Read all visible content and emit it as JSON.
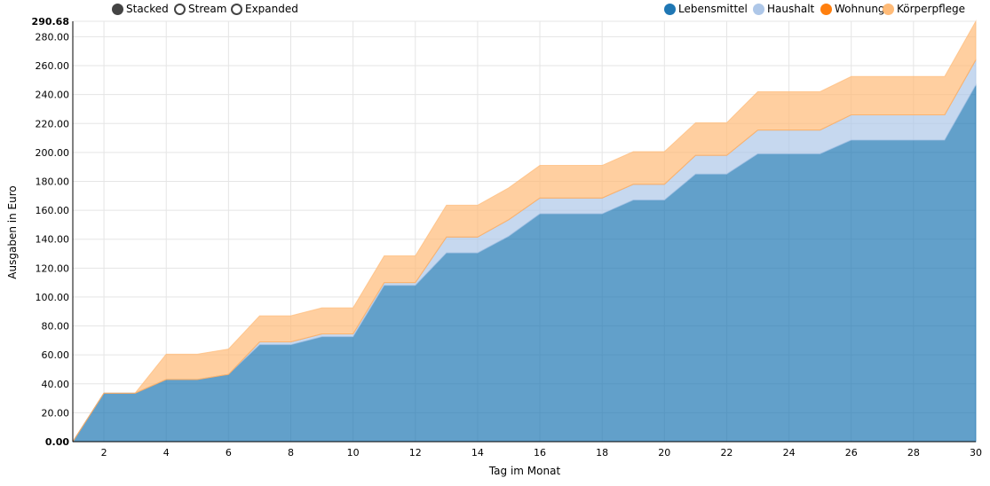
{
  "controls": {
    "stacked_label": "Stacked",
    "stream_label": "Stream",
    "expanded_label": "Expanded",
    "selected": "Stacked"
  },
  "legend": [
    {
      "name": "Lebensmittel",
      "color": "#1f77b4"
    },
    {
      "name": "Haushalt",
      "color": "#aec7e8"
    },
    {
      "name": "Wohnung",
      "color": "#ff7f0e"
    },
    {
      "name": "Körperpflege",
      "color": "#ffbb78"
    }
  ],
  "chart_data": {
    "type": "area",
    "stacked": true,
    "xlabel": "Tag im Monat",
    "ylabel": "Ausgaben in Euro",
    "xlim": [
      1,
      30
    ],
    "ylim": [
      0,
      290.68
    ],
    "ymax_label": "290.68",
    "ymin_label": "0.00",
    "yticks": [
      "20.00",
      "40.00",
      "60.00",
      "80.00",
      "100.00",
      "120.00",
      "140.00",
      "160.00",
      "180.00",
      "200.00",
      "220.00",
      "240.00",
      "260.00",
      "280.00"
    ],
    "xticks": [
      2,
      4,
      6,
      8,
      10,
      12,
      14,
      16,
      18,
      20,
      22,
      24,
      26,
      28,
      30
    ],
    "x": [
      1,
      2,
      3,
      4,
      5,
      6,
      7,
      8,
      9,
      10,
      11,
      12,
      13,
      14,
      15,
      16,
      17,
      18,
      19,
      20,
      21,
      22,
      23,
      24,
      25,
      26,
      27,
      28,
      29,
      30
    ],
    "series": [
      {
        "name": "Lebensmittel",
        "color": "#1f77b4",
        "values": [
          0,
          33.5,
          33.5,
          43,
          43,
          46.5,
          67,
          67,
          72.5,
          72.5,
          108,
          108,
          130.5,
          130.5,
          142,
          157.5,
          157.5,
          157.5,
          167,
          167,
          185,
          185,
          199,
          199,
          199,
          208.5,
          208.5,
          208.5,
          208.5,
          246.5
        ]
      },
      {
        "name": "Haushalt",
        "color": "#aec7e8",
        "values": [
          0,
          0,
          0,
          0,
          0,
          0,
          2,
          2,
          2,
          2,
          2,
          2,
          11,
          11,
          11.5,
          11,
          11,
          11,
          11,
          11,
          13,
          13,
          16.5,
          16.5,
          16.5,
          17.5,
          17.5,
          17.5,
          17.5,
          17.5
        ]
      },
      {
        "name": "Wohnung",
        "color": "#ff7f0e",
        "values": [
          0,
          0,
          0,
          0,
          0,
          0,
          0,
          0,
          0,
          0,
          0,
          0,
          0,
          0,
          0,
          0,
          0,
          0,
          0,
          0,
          0,
          0,
          0,
          0,
          0,
          0,
          0,
          0,
          0,
          0
        ]
      },
      {
        "name": "Körperpflege",
        "color": "#ffbb78",
        "values": [
          0,
          0,
          0,
          17.5,
          17.5,
          17.5,
          18,
          18,
          18,
          18,
          18.5,
          18.5,
          22,
          22,
          22,
          22.5,
          22.5,
          22.5,
          22.5,
          22.5,
          22.5,
          22.5,
          26.5,
          26.5,
          26.5,
          26.5,
          26.5,
          26.5,
          26.5,
          26.68
        ]
      }
    ]
  }
}
